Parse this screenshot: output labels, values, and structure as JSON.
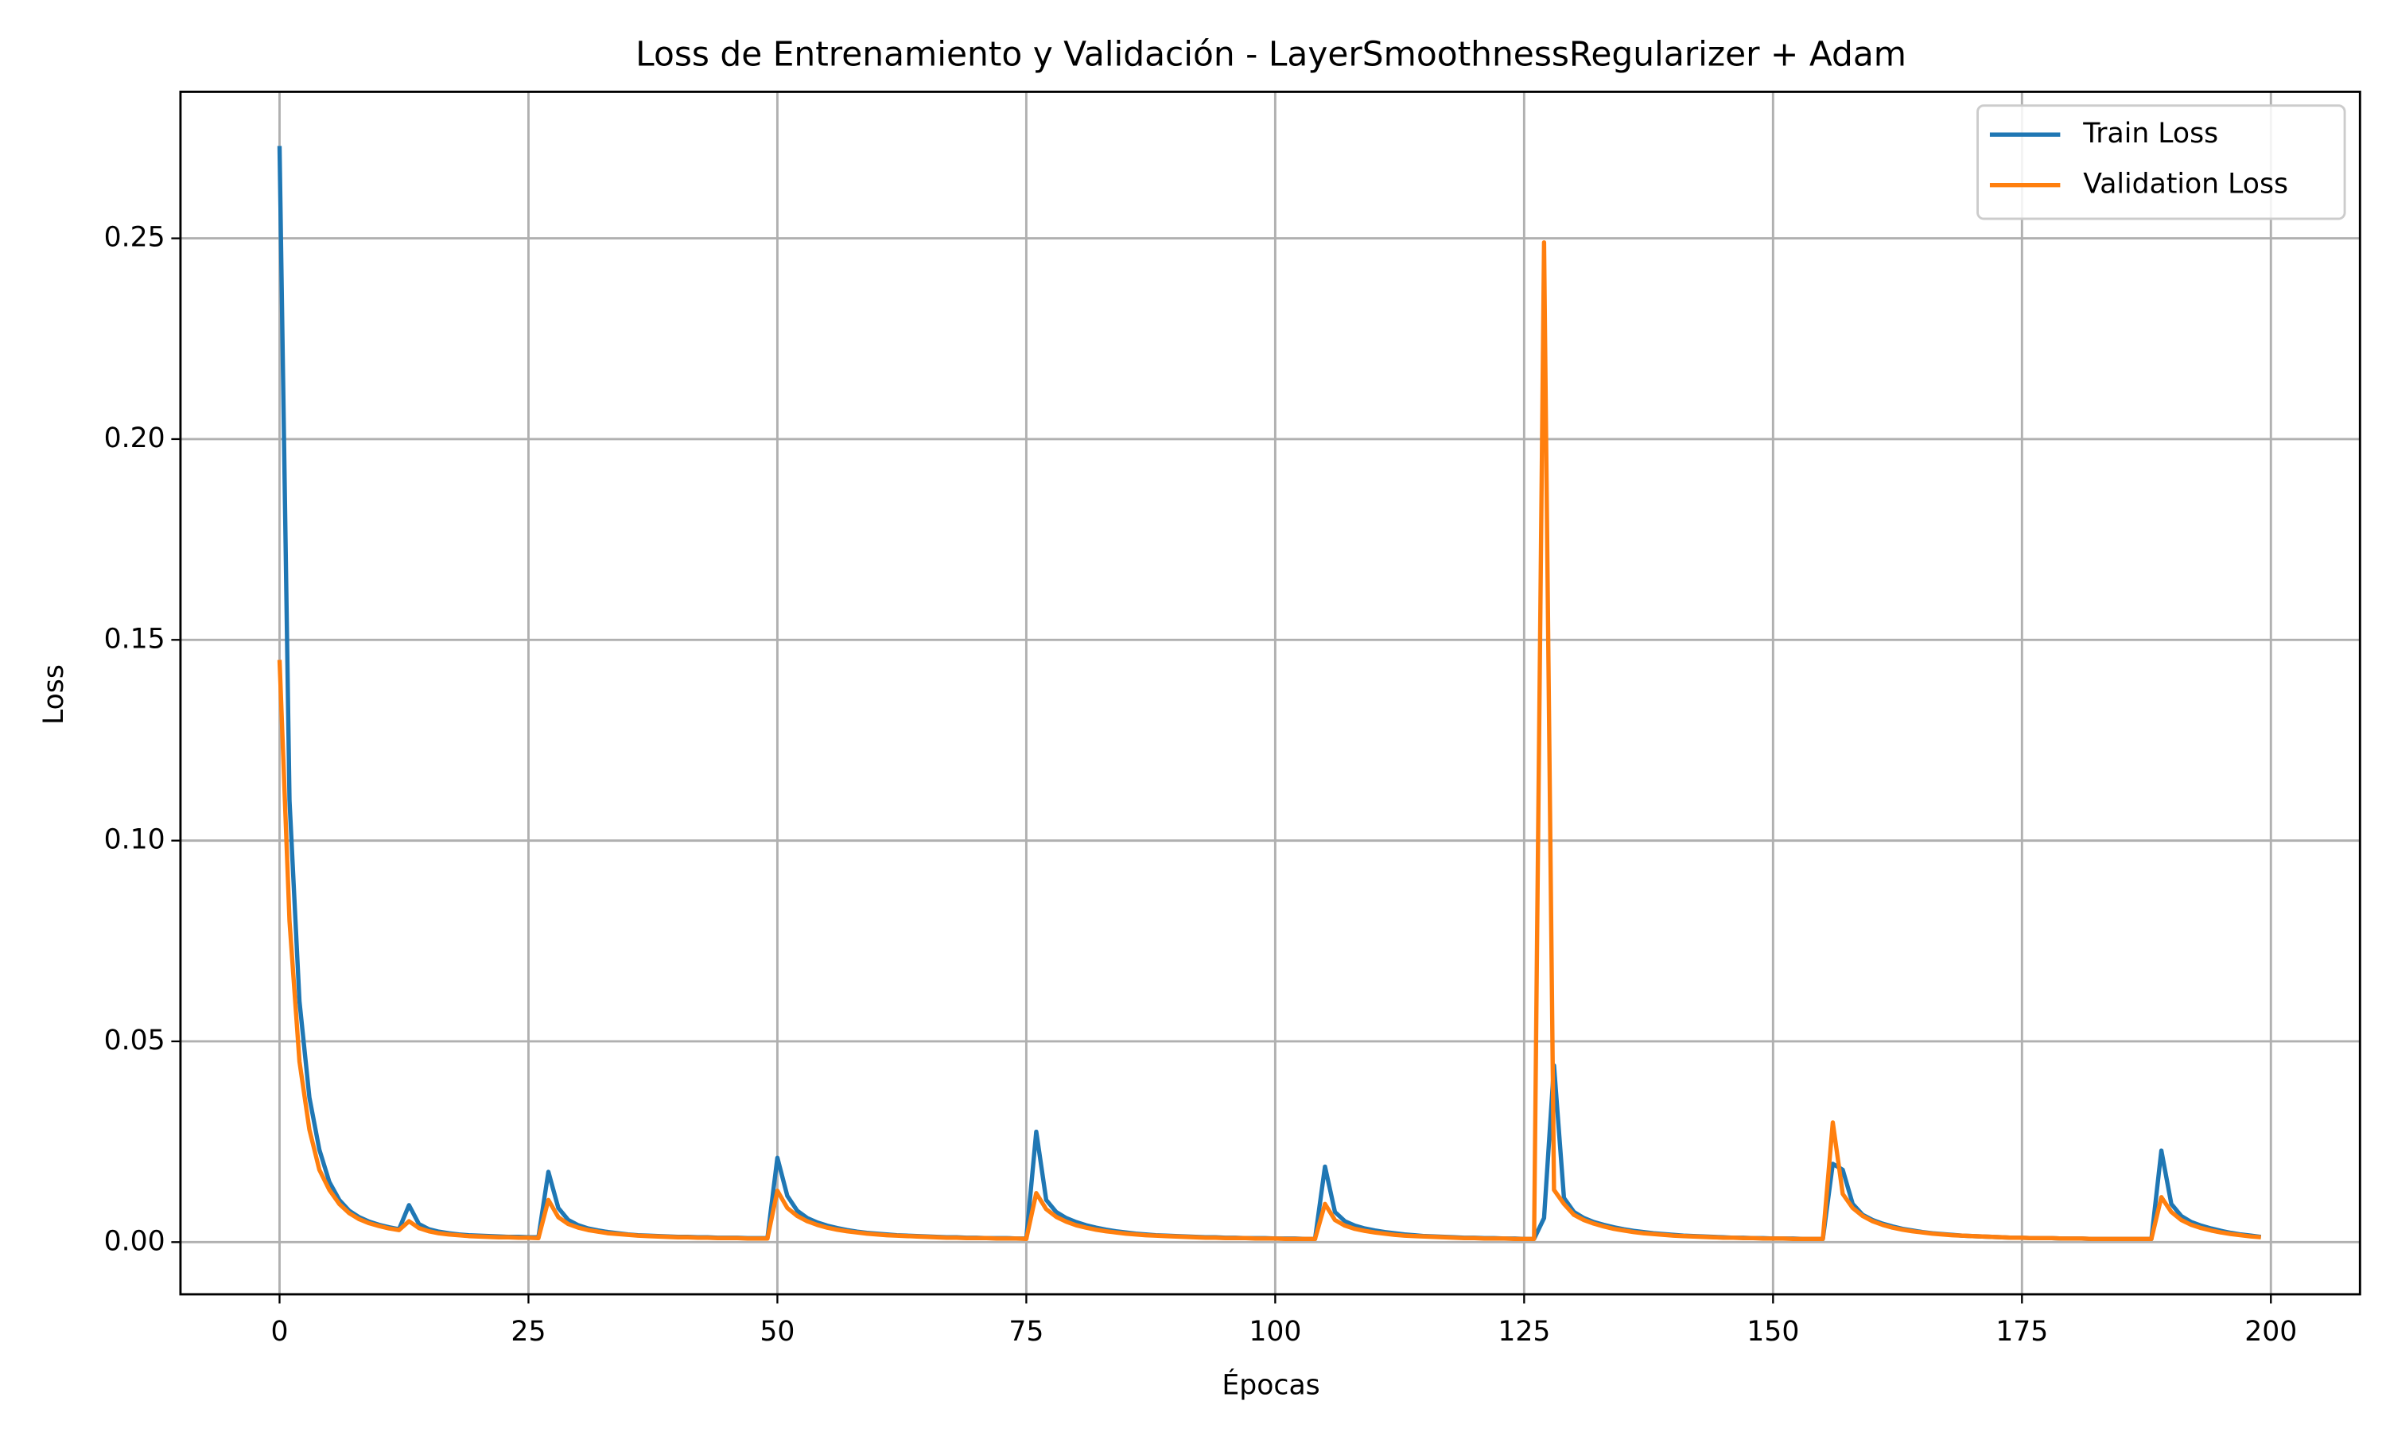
{
  "chart_data": {
    "type": "line",
    "title": "Loss de Entrenamiento y Validación - LayerSmoothnessRegularizer + Adam",
    "xlabel": "Épocas",
    "ylabel": "Loss",
    "x": [
      0,
      1,
      2,
      3,
      4,
      5,
      6,
      7,
      8,
      9,
      10,
      11,
      12,
      13,
      14,
      15,
      16,
      17,
      18,
      19,
      20,
      21,
      22,
      23,
      24,
      25,
      26,
      27,
      28,
      29,
      30,
      31,
      32,
      33,
      34,
      35,
      36,
      37,
      38,
      39,
      40,
      41,
      42,
      43,
      44,
      45,
      46,
      47,
      48,
      49,
      50,
      51,
      52,
      53,
      54,
      55,
      56,
      57,
      58,
      59,
      60,
      61,
      62,
      63,
      64,
      65,
      66,
      67,
      68,
      69,
      70,
      71,
      72,
      73,
      74,
      75,
      76,
      77,
      78,
      79,
      80,
      81,
      82,
      83,
      84,
      85,
      86,
      87,
      88,
      89,
      90,
      91,
      92,
      93,
      94,
      95,
      96,
      97,
      98,
      99,
      100,
      101,
      102,
      103,
      104,
      105,
      106,
      107,
      108,
      109,
      110,
      111,
      112,
      113,
      114,
      115,
      116,
      117,
      118,
      119,
      120,
      121,
      122,
      123,
      124,
      125,
      126,
      127,
      128,
      129,
      130,
      131,
      132,
      133,
      134,
      135,
      136,
      137,
      138,
      139,
      140,
      141,
      142,
      143,
      144,
      145,
      146,
      147,
      148,
      149,
      150,
      151,
      152,
      153,
      154,
      155,
      156,
      157,
      158,
      159,
      160,
      161,
      162,
      163,
      164,
      165,
      166,
      167,
      168,
      169,
      170,
      171,
      172,
      173,
      174,
      175,
      176,
      177,
      178,
      179,
      180,
      181,
      182,
      183,
      184,
      185,
      186,
      187,
      188,
      189,
      190,
      191,
      192,
      193,
      194,
      195,
      196,
      197,
      198,
      199
    ],
    "series": [
      {
        "name": "Train Loss",
        "color": "#1f77b4",
        "values": [
          0.273,
          0.11,
          0.06,
          0.036,
          0.023,
          0.015,
          0.0105,
          0.0078,
          0.0062,
          0.0051,
          0.0043,
          0.0037,
          0.0032,
          0.0092,
          0.0045,
          0.0032,
          0.0026,
          0.0022,
          0.0019,
          0.0017,
          0.0016,
          0.0015,
          0.0014,
          0.0013,
          0.0013,
          0.0012,
          0.0012,
          0.0175,
          0.0085,
          0.0055,
          0.0042,
          0.0034,
          0.0029,
          0.0025,
          0.0022,
          0.0019,
          0.0017,
          0.0016,
          0.0015,
          0.0014,
          0.0013,
          0.0013,
          0.0012,
          0.0012,
          0.0011,
          0.0011,
          0.0011,
          0.001,
          0.001,
          0.001,
          0.021,
          0.0115,
          0.0078,
          0.006,
          0.0049,
          0.0041,
          0.0035,
          0.003,
          0.0026,
          0.0023,
          0.0021,
          0.0019,
          0.0017,
          0.0016,
          0.0015,
          0.0014,
          0.0013,
          0.0012,
          0.0012,
          0.0011,
          0.0011,
          0.001,
          0.001,
          0.001,
          0.0009,
          0.0009,
          0.0275,
          0.0105,
          0.0075,
          0.006,
          0.005,
          0.0042,
          0.0036,
          0.0031,
          0.0027,
          0.0024,
          0.0021,
          0.0019,
          0.0017,
          0.0016,
          0.0015,
          0.0014,
          0.0013,
          0.0012,
          0.0012,
          0.0011,
          0.0011,
          0.001,
          0.001,
          0.001,
          0.0009,
          0.0009,
          0.0009,
          0.0008,
          0.0008,
          0.0188,
          0.0075,
          0.0052,
          0.0041,
          0.0034,
          0.0029,
          0.0025,
          0.0022,
          0.0019,
          0.0017,
          0.0015,
          0.0014,
          0.0013,
          0.0012,
          0.0011,
          0.0011,
          0.001,
          0.001,
          0.0009,
          0.0009,
          0.0008,
          0.0008,
          0.006,
          0.044,
          0.011,
          0.0075,
          0.006,
          0.005,
          0.0043,
          0.0037,
          0.0032,
          0.0028,
          0.0025,
          0.0022,
          0.002,
          0.0018,
          0.0016,
          0.0015,
          0.0014,
          0.0013,
          0.0012,
          0.0011,
          0.0011,
          0.001,
          0.001,
          0.0009,
          0.0009,
          0.0009,
          0.0008,
          0.0008,
          0.0008,
          0.0195,
          0.018,
          0.0095,
          0.0068,
          0.0055,
          0.0046,
          0.0039,
          0.0033,
          0.0029,
          0.0025,
          0.0022,
          0.002,
          0.0018,
          0.0016,
          0.0015,
          0.0014,
          0.0013,
          0.0012,
          0.0011,
          0.0011,
          0.001,
          0.001,
          0.001,
          0.0009,
          0.0009,
          0.0009,
          0.0008,
          0.0008,
          0.0008,
          0.0008,
          0.0008,
          0.0008,
          0.0008,
          0.0228,
          0.0095,
          0.0065,
          0.005,
          0.0041,
          0.0034,
          0.0028,
          0.0023,
          0.0019,
          0.0016,
          0.0013
        ]
      },
      {
        "name": "Validation Loss",
        "color": "#ff7f0e",
        "values": [
          0.145,
          0.08,
          0.045,
          0.028,
          0.018,
          0.013,
          0.0095,
          0.0072,
          0.0057,
          0.0047,
          0.004,
          0.0034,
          0.003,
          0.0052,
          0.0035,
          0.0027,
          0.0022,
          0.0019,
          0.0017,
          0.0015,
          0.0014,
          0.0013,
          0.0012,
          0.0012,
          0.0011,
          0.0011,
          0.001,
          0.0105,
          0.0062,
          0.0045,
          0.0036,
          0.003,
          0.0026,
          0.0022,
          0.002,
          0.0018,
          0.0016,
          0.0015,
          0.0014,
          0.0013,
          0.0012,
          0.0012,
          0.0011,
          0.0011,
          0.001,
          0.001,
          0.001,
          0.0009,
          0.0009,
          0.0009,
          0.0128,
          0.0085,
          0.0065,
          0.0052,
          0.0043,
          0.0036,
          0.0031,
          0.0027,
          0.0024,
          0.0021,
          0.0019,
          0.0017,
          0.0016,
          0.0015,
          0.0014,
          0.0013,
          0.0012,
          0.0011,
          0.0011,
          0.001,
          0.001,
          0.001,
          0.0009,
          0.0009,
          0.0009,
          0.0008,
          0.0122,
          0.0082,
          0.0063,
          0.0051,
          0.0042,
          0.0036,
          0.0031,
          0.0027,
          0.0024,
          0.0021,
          0.0019,
          0.0017,
          0.0016,
          0.0015,
          0.0014,
          0.0013,
          0.0012,
          0.0011,
          0.0011,
          0.001,
          0.001,
          0.001,
          0.0009,
          0.0009,
          0.0009,
          0.0008,
          0.0008,
          0.0008,
          0.0008,
          0.0095,
          0.0055,
          0.0041,
          0.0033,
          0.0028,
          0.0024,
          0.0021,
          0.0018,
          0.0016,
          0.0015,
          0.0014,
          0.0013,
          0.0012,
          0.0011,
          0.001,
          0.001,
          0.0009,
          0.0009,
          0.0009,
          0.0008,
          0.0008,
          0.0008,
          0.249,
          0.013,
          0.0095,
          0.0068,
          0.0055,
          0.0046,
          0.0039,
          0.0033,
          0.0029,
          0.0025,
          0.0022,
          0.002,
          0.0018,
          0.0016,
          0.0015,
          0.0014,
          0.0013,
          0.0012,
          0.0011,
          0.0011,
          0.001,
          0.001,
          0.0009,
          0.0009,
          0.0009,
          0.0008,
          0.0008,
          0.0008,
          0.0008,
          0.0298,
          0.012,
          0.0085,
          0.0065,
          0.0052,
          0.0043,
          0.0036,
          0.0031,
          0.0027,
          0.0024,
          0.0021,
          0.0019,
          0.0017,
          0.0016,
          0.0015,
          0.0014,
          0.0013,
          0.0012,
          0.0011,
          0.0011,
          0.001,
          0.001,
          0.001,
          0.0009,
          0.0009,
          0.0009,
          0.0008,
          0.0008,
          0.0008,
          0.0008,
          0.0008,
          0.0008,
          0.0008,
          0.0112,
          0.0075,
          0.0055,
          0.0043,
          0.0035,
          0.0029,
          0.0024,
          0.002,
          0.0017,
          0.0014,
          0.0012
        ]
      }
    ],
    "xlim": [
      -9.95,
      208.95
    ],
    "xticks": [
      0,
      25,
      50,
      75,
      100,
      125,
      150,
      175,
      200
    ],
    "ylim": [
      -0.013,
      0.2865
    ],
    "yticks": [
      {
        "value": 0,
        "label": "0.00"
      },
      0.05,
      {
        "value": 0.1,
        "label": "0.10"
      },
      0.15,
      {
        "value": 0.2,
        "label": "0.20"
      },
      0.25
    ],
    "grid": true,
    "legend": "upper right"
  }
}
